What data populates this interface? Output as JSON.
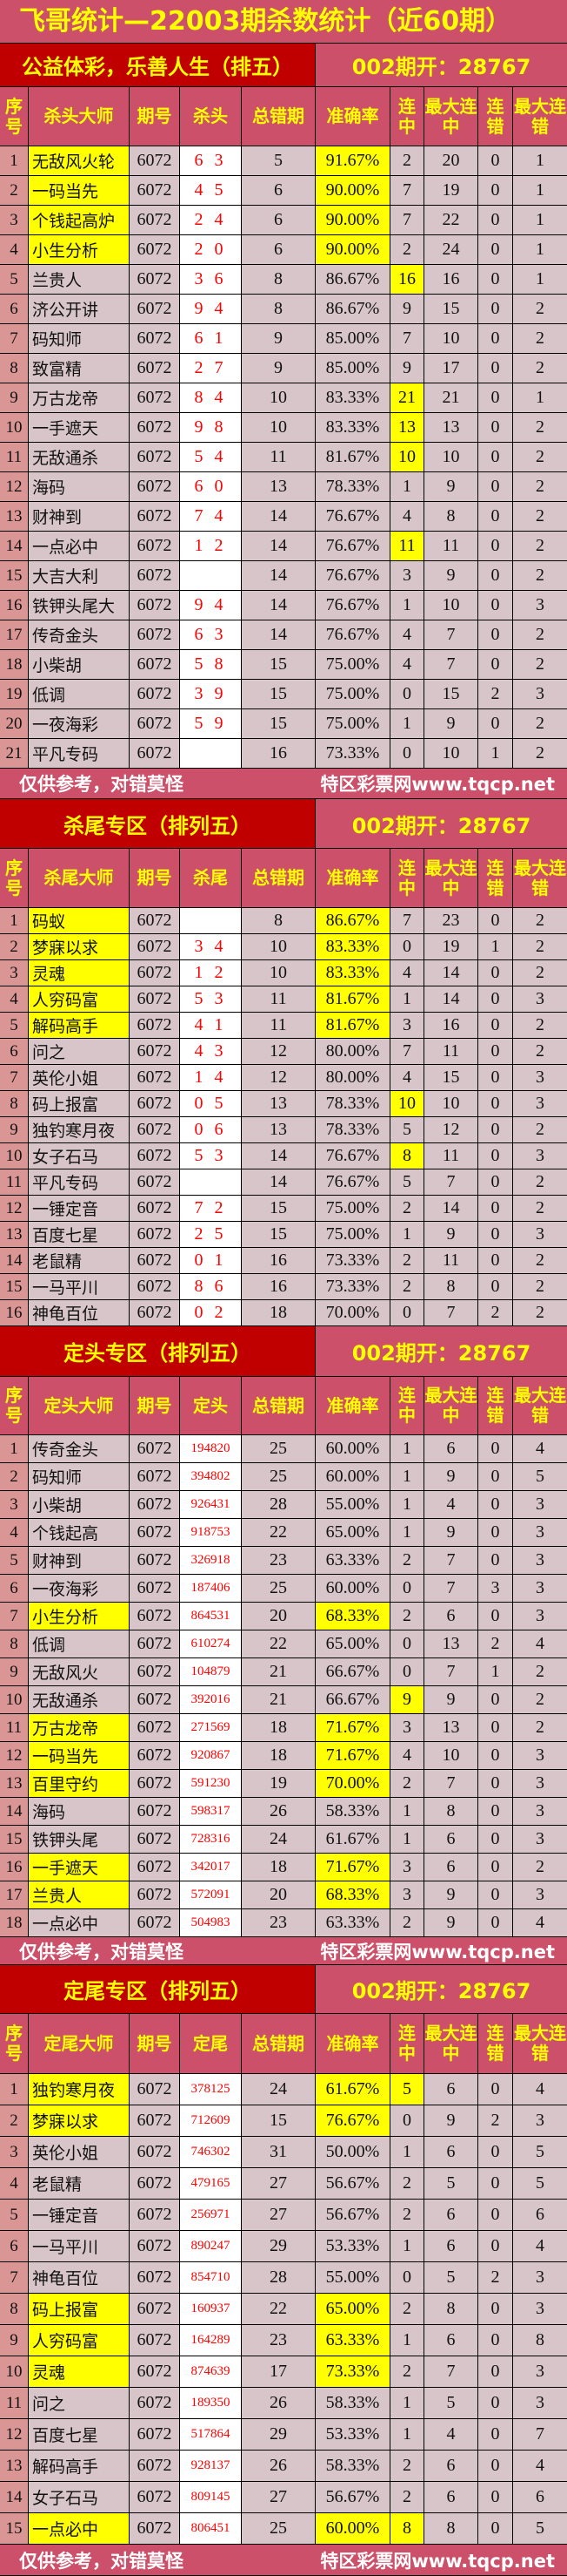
{
  "title": "飞哥统计—22003期杀数统计（近60期）",
  "footer": {
    "left": "仅供参考，对错莫怪",
    "right": "特区彩票网www.tqcp.net"
  },
  "colors": {
    "header": "#cc5069",
    "banner": "#c00000",
    "title_text": "#ffff00",
    "row": "#d8c5c9",
    "index": "#d99694",
    "highlight": "#ffff00",
    "pick_text": "#ff0000"
  },
  "sections": [
    {
      "name": "公益体彩，乐善人生（排五）",
      "draw": "002期开：28767",
      "headers": [
        "序号",
        "杀头大师",
        "期号",
        "杀头",
        "总错期",
        "准确率",
        "连中",
        "最大连中",
        "连错",
        "最大连错"
      ],
      "rows": [
        [
          "无敌风火轮",
          "6072",
          "6 3",
          "5",
          "91.67%",
          "2",
          "20",
          "0",
          "1",
          "na"
        ],
        [
          "一码当先",
          "6072",
          "4 5",
          "6",
          "90.00%",
          "7",
          "19",
          "0",
          "1",
          "na"
        ],
        [
          "个钱起高炉",
          "6072",
          "2 4",
          "6",
          "90.00%",
          "7",
          "22",
          "0",
          "1",
          "na"
        ],
        [
          "小生分析",
          "6072",
          "2 0",
          "6",
          "90.00%",
          "2",
          "24",
          "0",
          "1",
          "na"
        ],
        [
          "兰贵人",
          "6072",
          "3 6",
          "8",
          "86.67%",
          "16",
          "16",
          "0",
          "1",
          "s"
        ],
        [
          "济公开讲",
          "6072",
          "9 4",
          "8",
          "86.67%",
          "9",
          "15",
          "0",
          "2",
          ""
        ],
        [
          "码知师",
          "6072",
          "6 1",
          "9",
          "85.00%",
          "7",
          "10",
          "0",
          "2",
          ""
        ],
        [
          "致富精",
          "6072",
          "2 7",
          "9",
          "85.00%",
          "9",
          "17",
          "0",
          "2",
          ""
        ],
        [
          "万古龙帝",
          "6072",
          "8 4",
          "10",
          "83.33%",
          "21",
          "21",
          "0",
          "1",
          "s"
        ],
        [
          "一手遮天",
          "6072",
          "9 8",
          "10",
          "83.33%",
          "13",
          "13",
          "0",
          "2",
          "s"
        ],
        [
          "无敌通杀",
          "6072",
          "5 4",
          "11",
          "81.67%",
          "10",
          "10",
          "0",
          "2",
          "s"
        ],
        [
          "海码",
          "6072",
          "6 0",
          "13",
          "78.33%",
          "1",
          "9",
          "0",
          "2",
          ""
        ],
        [
          "财神到",
          "6072",
          "7 4",
          "14",
          "76.67%",
          "4",
          "8",
          "0",
          "2",
          ""
        ],
        [
          "一点必中",
          "6072",
          "1 2",
          "14",
          "76.67%",
          "11",
          "11",
          "0",
          "2",
          "s"
        ],
        [
          "大吉大利",
          "6072",
          "",
          "14",
          "76.67%",
          "3",
          "9",
          "0",
          "2",
          ""
        ],
        [
          "铁钾头尾大",
          "6072",
          "9 4",
          "14",
          "76.67%",
          "1",
          "10",
          "0",
          "3",
          ""
        ],
        [
          "传奇金头",
          "6072",
          "6 3",
          "14",
          "76.67%",
          "4",
          "7",
          "0",
          "2",
          ""
        ],
        [
          "小柴胡",
          "6072",
          "5 8",
          "15",
          "75.00%",
          "4",
          "7",
          "0",
          "2",
          ""
        ],
        [
          "低调",
          "6072",
          "3 9",
          "15",
          "75.00%",
          "0",
          "15",
          "2",
          "3",
          ""
        ],
        [
          "一夜海彩",
          "6072",
          "5 9",
          "15",
          "75.00%",
          "1",
          "9",
          "0",
          "2",
          ""
        ],
        [
          "平凡专码",
          "6072",
          "",
          "16",
          "73.33%",
          "0",
          "10",
          "1",
          "2",
          ""
        ]
      ]
    },
    {
      "name": "杀尾专区（排列五）",
      "draw": "002期开：28767",
      "headers": [
        "序号",
        "杀尾大师",
        "期号",
        "杀尾",
        "总错期",
        "准确率",
        "连中",
        "最大连中",
        "连错",
        "最大连错"
      ],
      "rows": [
        [
          "码蚁",
          "6072",
          "",
          "8",
          "86.67%",
          "7",
          "23",
          "0",
          "2",
          "na"
        ],
        [
          "梦寐以求",
          "6072",
          "3 4",
          "10",
          "83.33%",
          "0",
          "19",
          "1",
          "2",
          "na"
        ],
        [
          "灵魂",
          "6072",
          "1 2",
          "10",
          "83.33%",
          "4",
          "14",
          "0",
          "2",
          "na"
        ],
        [
          "人穷码富",
          "6072",
          "5 3",
          "11",
          "81.67%",
          "1",
          "14",
          "0",
          "3",
          "na"
        ],
        [
          "解码高手",
          "6072",
          "4 1",
          "11",
          "81.67%",
          "3",
          "16",
          "0",
          "2",
          "na"
        ],
        [
          "问之",
          "6072",
          "4 3",
          "12",
          "80.00%",
          "7",
          "11",
          "0",
          "2",
          ""
        ],
        [
          "英伦小姐",
          "6072",
          "1 4",
          "12",
          "80.00%",
          "4",
          "15",
          "0",
          "3",
          ""
        ],
        [
          "码上报富",
          "6072",
          "0 5",
          "13",
          "78.33%",
          "10",
          "10",
          "0",
          "3",
          "s"
        ],
        [
          "独钓寒月夜",
          "6072",
          "0 6",
          "13",
          "78.33%",
          "5",
          "12",
          "0",
          "2",
          ""
        ],
        [
          "女子石马",
          "6072",
          "5 3",
          "14",
          "76.67%",
          "8",
          "11",
          "0",
          "3",
          "s"
        ],
        [
          "平凡专码",
          "6072",
          "",
          "14",
          "76.67%",
          "5",
          "7",
          "0",
          "2",
          ""
        ],
        [
          "一锤定音",
          "6072",
          "7 2",
          "15",
          "75.00%",
          "2",
          "14",
          "0",
          "2",
          ""
        ],
        [
          "百度七星",
          "6072",
          "2 5",
          "15",
          "75.00%",
          "1",
          "9",
          "0",
          "3",
          ""
        ],
        [
          "老鼠精",
          "6072",
          "0 1",
          "16",
          "73.33%",
          "2",
          "11",
          "0",
          "2",
          ""
        ],
        [
          "一马平川",
          "6072",
          "8 6",
          "16",
          "73.33%",
          "2",
          "8",
          "0",
          "2",
          ""
        ],
        [
          "神龟百位",
          "6072",
          "0 2",
          "18",
          "70.00%",
          "0",
          "7",
          "2",
          "2",
          ""
        ]
      ]
    },
    {
      "name": "定头专区（排列五）",
      "draw": "002期开：28767",
      "headers": [
        "序号",
        "定头大师",
        "期号",
        "定头",
        "总错期",
        "准确率",
        "连中",
        "最大连中",
        "连错",
        "最大连错"
      ],
      "rows": [
        [
          "传奇金头",
          "6072",
          "194820",
          "25",
          "60.00%",
          "1",
          "6",
          "0",
          "4",
          ""
        ],
        [
          "码知师",
          "6072",
          "394802",
          "25",
          "60.00%",
          "1",
          "9",
          "0",
          "5",
          ""
        ],
        [
          "小柴胡",
          "6072",
          "926431",
          "28",
          "55.00%",
          "1",
          "4",
          "0",
          "3",
          ""
        ],
        [
          "个钱起高",
          "6072",
          "918753",
          "22",
          "65.00%",
          "1",
          "9",
          "0",
          "3",
          ""
        ],
        [
          "财神到",
          "6072",
          "326918",
          "23",
          "63.33%",
          "2",
          "7",
          "0",
          "3",
          ""
        ],
        [
          "一夜海彩",
          "6072",
          "187406",
          "25",
          "60.00%",
          "0",
          "7",
          "3",
          "3",
          ""
        ],
        [
          "小生分析",
          "6072",
          "864531",
          "20",
          "68.33%",
          "2",
          "6",
          "0",
          "3",
          "na"
        ],
        [
          "低调",
          "6072",
          "610274",
          "22",
          "65.00%",
          "0",
          "13",
          "2",
          "4",
          ""
        ],
        [
          "无敌风火",
          "6072",
          "104879",
          "21",
          "66.67%",
          "0",
          "7",
          "1",
          "2",
          ""
        ],
        [
          "无敌通杀",
          "6072",
          "392016",
          "21",
          "66.67%",
          "9",
          "9",
          "0",
          "2",
          "s"
        ],
        [
          "万古龙帝",
          "6072",
          "271569",
          "18",
          "71.67%",
          "3",
          "13",
          "0",
          "2",
          "na"
        ],
        [
          "一码当先",
          "6072",
          "920867",
          "18",
          "71.67%",
          "4",
          "10",
          "0",
          "3",
          "na"
        ],
        [
          "百里守约",
          "6072",
          "591230",
          "19",
          "70.00%",
          "2",
          "7",
          "0",
          "3",
          "na"
        ],
        [
          "海码",
          "6072",
          "598317",
          "26",
          "58.33%",
          "1",
          "8",
          "0",
          "3",
          ""
        ],
        [
          "铁钾头尾",
          "6072",
          "728316",
          "24",
          "61.67%",
          "1",
          "6",
          "0",
          "3",
          ""
        ],
        [
          "一手遮天",
          "6072",
          "342017",
          "18",
          "71.67%",
          "3",
          "6",
          "0",
          "2",
          "na"
        ],
        [
          "兰贵人",
          "6072",
          "572091",
          "20",
          "68.33%",
          "3",
          "9",
          "0",
          "3",
          "na"
        ],
        [
          "一点必中",
          "6072",
          "504983",
          "23",
          "63.33%",
          "2",
          "9",
          "0",
          "4",
          ""
        ]
      ]
    },
    {
      "name": "定尾专区（排列五）",
      "draw": "002期开：28767",
      "headers": [
        "序号",
        "定尾大师",
        "期号",
        "定尾",
        "总错期",
        "准确率",
        "连中",
        "最大连中",
        "连错",
        "最大连错"
      ],
      "rows": [
        [
          "独钓寒月夜",
          "6072",
          "378125",
          "24",
          "61.67%",
          "5",
          "6",
          "0",
          "4",
          "nas"
        ],
        [
          "梦寐以求",
          "6072",
          "712609",
          "15",
          "76.67%",
          "0",
          "9",
          "2",
          "3",
          "na"
        ],
        [
          "英伦小姐",
          "6072",
          "746302",
          "31",
          "50.00%",
          "1",
          "6",
          "0",
          "5",
          ""
        ],
        [
          "老鼠精",
          "6072",
          "479165",
          "27",
          "56.67%",
          "2",
          "5",
          "0",
          "5",
          ""
        ],
        [
          "一锤定音",
          "6072",
          "256971",
          "27",
          "56.67%",
          "2",
          "6",
          "0",
          "6",
          ""
        ],
        [
          "一马平川",
          "6072",
          "890247",
          "29",
          "53.33%",
          "1",
          "6",
          "0",
          "4",
          ""
        ],
        [
          "神龟百位",
          "6072",
          "854710",
          "28",
          "55.00%",
          "0",
          "5",
          "2",
          "3",
          ""
        ],
        [
          "码上报富",
          "6072",
          "160937",
          "22",
          "65.00%",
          "2",
          "8",
          "0",
          "3",
          "na"
        ],
        [
          "人穷码富",
          "6072",
          "164289",
          "23",
          "63.33%",
          "1",
          "6",
          "0",
          "8",
          "na"
        ],
        [
          "灵魂",
          "6072",
          "874639",
          "17",
          "73.33%",
          "2",
          "7",
          "0",
          "3",
          "na"
        ],
        [
          "问之",
          "6072",
          "189350",
          "26",
          "58.33%",
          "1",
          "5",
          "0",
          "3",
          ""
        ],
        [
          "百度七星",
          "6072",
          "517864",
          "29",
          "53.33%",
          "1",
          "4",
          "0",
          "7",
          ""
        ],
        [
          "解码高手",
          "6072",
          "928137",
          "26",
          "58.33%",
          "2",
          "6",
          "0",
          "4",
          ""
        ],
        [
          "女子石马",
          "6072",
          "809145",
          "27",
          "56.67%",
          "2",
          "6",
          "0",
          "6",
          ""
        ],
        [
          "一点必中",
          "6072",
          "806451",
          "25",
          "60.00%",
          "8",
          "8",
          "0",
          "5",
          "nas"
        ]
      ]
    }
  ]
}
